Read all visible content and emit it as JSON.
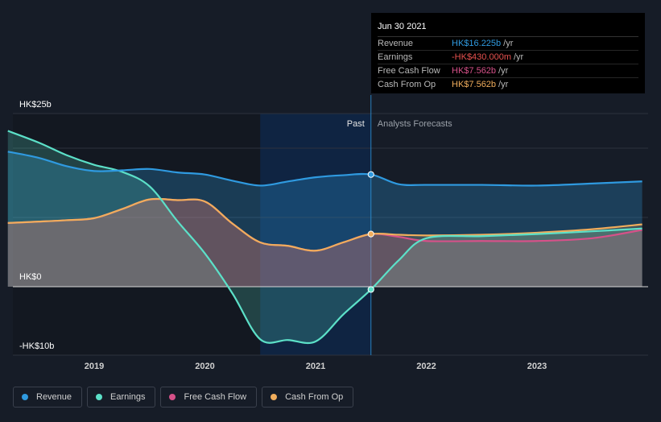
{
  "tooltip": {
    "date": "Jun 30 2021",
    "rows": [
      {
        "label": "Revenue",
        "value": "HK$16.225b",
        "unit": "/yr",
        "color": "#2f9ae0"
      },
      {
        "label": "Earnings",
        "value": "-HK$430.000m",
        "unit": "/yr",
        "color": "#e8524f"
      },
      {
        "label": "Free Cash Flow",
        "value": "HK$7.562b",
        "unit": "/yr",
        "color": "#d65189"
      },
      {
        "label": "Cash From Op",
        "value": "HK$7.562b",
        "unit": "/yr",
        "color": "#f0ad5c"
      }
    ]
  },
  "chart_data": {
    "type": "line",
    "ylabels": {
      "top": "HK$25b",
      "zero": "HK$0",
      "bottom": "-HK$10b"
    },
    "ylim": [
      -10,
      25
    ],
    "xlim": [
      2018.0,
      2023.95
    ],
    "x_ticks": [
      {
        "x": 2019,
        "label": "2019"
      },
      {
        "x": 2020,
        "label": "2020"
      },
      {
        "x": 2021,
        "label": "2021"
      },
      {
        "x": 2022,
        "label": "2022"
      },
      {
        "x": 2023,
        "label": "2023"
      }
    ],
    "divider_x": 2021.5,
    "highlight_from": 2020.5,
    "past_label": "Past",
    "forecast_label": "Analysts Forecasts",
    "grid": true,
    "series": [
      {
        "name": "Revenue",
        "color": "#2f9ae0",
        "marker_x": 2021.5,
        "points": [
          [
            2018.22,
            19.5
          ],
          [
            2018.5,
            18.6
          ],
          [
            2018.75,
            17.4
          ],
          [
            2019.0,
            16.7
          ],
          [
            2019.25,
            16.8
          ],
          [
            2019.5,
            17.0
          ],
          [
            2019.75,
            16.5
          ],
          [
            2020.0,
            16.2
          ],
          [
            2020.25,
            15.3
          ],
          [
            2020.5,
            14.6
          ],
          [
            2020.75,
            15.2
          ],
          [
            2021.0,
            15.8
          ],
          [
            2021.25,
            16.1
          ],
          [
            2021.5,
            16.2
          ],
          [
            2021.75,
            14.8
          ],
          [
            2022.0,
            14.7
          ],
          [
            2022.5,
            14.7
          ],
          [
            2023.0,
            14.6
          ],
          [
            2023.5,
            14.9
          ],
          [
            2023.95,
            15.2
          ]
        ]
      },
      {
        "name": "Earnings",
        "color": "#5ce0c8",
        "marker_x": 2021.5,
        "points": [
          [
            2018.22,
            22.5
          ],
          [
            2018.5,
            20.8
          ],
          [
            2018.75,
            19.0
          ],
          [
            2019.0,
            17.6
          ],
          [
            2019.25,
            16.6
          ],
          [
            2019.5,
            14.5
          ],
          [
            2019.75,
            9.5
          ],
          [
            2020.0,
            4.8
          ],
          [
            2020.25,
            -1.0
          ],
          [
            2020.5,
            -7.6
          ],
          [
            2020.75,
            -7.7
          ],
          [
            2021.0,
            -7.9
          ],
          [
            2021.25,
            -4.0
          ],
          [
            2021.5,
            -0.4
          ],
          [
            2021.75,
            3.8
          ],
          [
            2022.0,
            7.0
          ],
          [
            2022.5,
            7.3
          ],
          [
            2023.0,
            7.6
          ],
          [
            2023.5,
            8.0
          ],
          [
            2023.95,
            8.4
          ]
        ]
      },
      {
        "name": "Free Cash Flow",
        "color": "#d65189",
        "marker_x": 2021.5,
        "points": [
          [
            2018.22,
            9.2
          ],
          [
            2018.5,
            9.4
          ],
          [
            2018.75,
            9.6
          ],
          [
            2019.0,
            9.9
          ],
          [
            2019.25,
            11.2
          ],
          [
            2019.5,
            12.6
          ],
          [
            2019.75,
            12.5
          ],
          [
            2020.0,
            12.3
          ],
          [
            2020.25,
            9.1
          ],
          [
            2020.5,
            6.4
          ],
          [
            2020.75,
            5.9
          ],
          [
            2021.0,
            5.2
          ],
          [
            2021.25,
            6.4
          ],
          [
            2021.5,
            7.6
          ],
          [
            2021.75,
            7.2
          ],
          [
            2022.0,
            6.6
          ],
          [
            2022.5,
            6.6
          ],
          [
            2023.0,
            6.6
          ],
          [
            2023.5,
            7.0
          ],
          [
            2023.95,
            8.2
          ]
        ]
      },
      {
        "name": "Cash From Op",
        "color": "#f0ad5c",
        "marker_x": 2021.5,
        "points": [
          [
            2018.22,
            9.2
          ],
          [
            2018.5,
            9.4
          ],
          [
            2018.75,
            9.6
          ],
          [
            2019.0,
            9.9
          ],
          [
            2019.25,
            11.2
          ],
          [
            2019.5,
            12.6
          ],
          [
            2019.75,
            12.5
          ],
          [
            2020.0,
            12.3
          ],
          [
            2020.25,
            9.1
          ],
          [
            2020.5,
            6.4
          ],
          [
            2020.75,
            5.9
          ],
          [
            2021.0,
            5.2
          ],
          [
            2021.25,
            6.4
          ],
          [
            2021.5,
            7.6
          ],
          [
            2021.75,
            7.5
          ],
          [
            2022.0,
            7.4
          ],
          [
            2022.5,
            7.5
          ],
          [
            2023.0,
            7.8
          ],
          [
            2023.5,
            8.3
          ],
          [
            2023.95,
            9.0
          ]
        ]
      }
    ]
  },
  "legend": [
    {
      "label": "Revenue",
      "color": "#2f9ae0"
    },
    {
      "label": "Earnings",
      "color": "#5ce0c8"
    },
    {
      "label": "Free Cash Flow",
      "color": "#d65189"
    },
    {
      "label": "Cash From Op",
      "color": "#f0ad5c"
    }
  ]
}
